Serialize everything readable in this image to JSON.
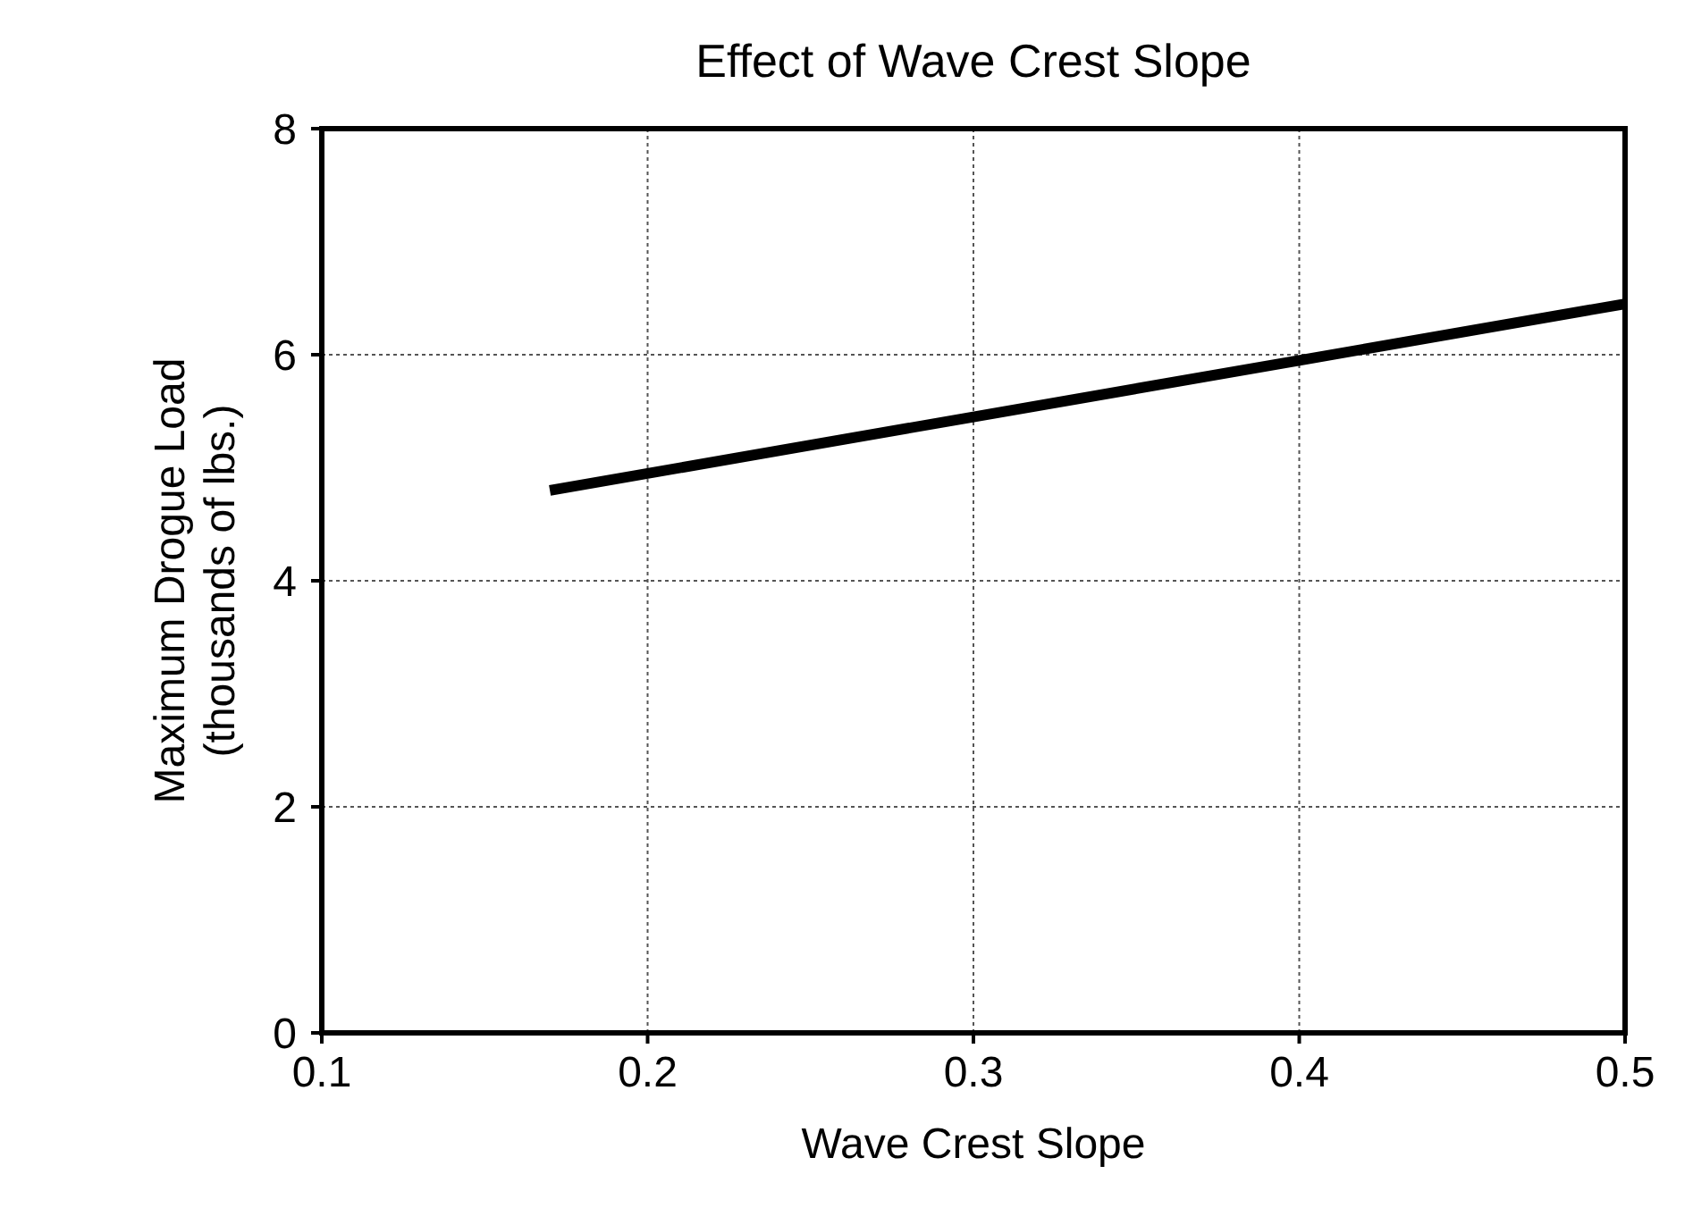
{
  "chart_data": {
    "type": "line",
    "title": "Effect of Wave Crest Slope",
    "xlabel": "Wave Crest Slope",
    "ylabel": "Maximum Drogue Load\n(thousands of lbs.)",
    "x": [
      0.17,
      0.3,
      0.4,
      0.5
    ],
    "series": [
      {
        "color": "#000000",
        "values": [
          4.8,
          5.45,
          5.95,
          6.45
        ]
      }
    ],
    "xlim": [
      0.1,
      0.5
    ],
    "xticks": [
      {
        "value": 0.1,
        "label": "0.1"
      },
      {
        "value": 0.2,
        "label": "0.2"
      },
      {
        "value": 0.3,
        "label": "0.3"
      },
      {
        "value": 0.4,
        "label": "0.4"
      },
      {
        "value": 0.5,
        "label": "0.5"
      }
    ],
    "ylim": [
      0,
      8
    ],
    "yticks": [
      0,
      2,
      4,
      6,
      8
    ],
    "grid": true,
    "marker": "none",
    "line_style": "solid"
  }
}
